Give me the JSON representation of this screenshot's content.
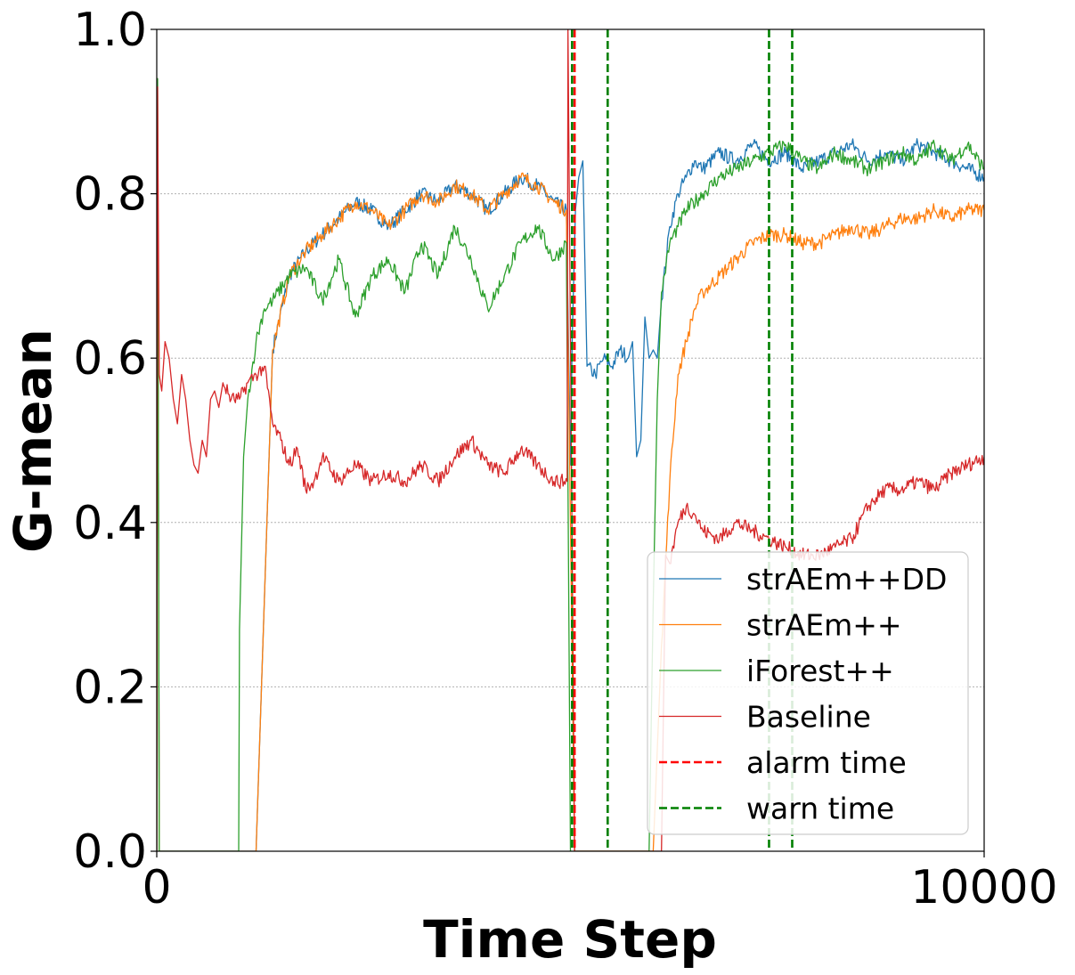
{
  "chart_data": {
    "type": "line",
    "xlabel": "Time Step",
    "ylabel": "G-mean",
    "xlim": [
      0,
      10000
    ],
    "ylim": [
      0.0,
      1.0
    ],
    "xticks": [
      0,
      10000
    ],
    "xtick_labels": [
      "0",
      "10000"
    ],
    "yticks": [
      0.0,
      0.2,
      0.4,
      0.6,
      0.8,
      1.0
    ],
    "ytick_labels": [
      "0.0",
      "0.2",
      "0.4",
      "0.6",
      "0.8",
      "1.0"
    ],
    "grid": "horizontal dotted",
    "legend_position": "lower-right",
    "series": [
      {
        "name": "strAEm++DD",
        "color": "#1f77b4",
        "x": [
          0,
          10,
          30,
          500,
          800,
          1000,
          1200,
          1400,
          1600,
          1800,
          2000,
          2200,
          2400,
          2600,
          2800,
          3000,
          3200,
          3400,
          3600,
          3800,
          4000,
          4200,
          4400,
          4600,
          4800,
          4950,
          5000,
          5020,
          5060,
          5100,
          5150,
          5200,
          5300,
          5400,
          5500,
          5600,
          5700,
          5750,
          5800,
          5850,
          5900,
          5950,
          6000,
          6050,
          6100,
          6200,
          6300,
          6400,
          6500,
          6600,
          6800,
          7000,
          7200,
          7400,
          7600,
          7800,
          8000,
          8200,
          8400,
          8600,
          8800,
          9000,
          9200,
          9400,
          9600,
          9800,
          10000
        ],
        "y": [
          0.0,
          0.94,
          0.0,
          0.0,
          0.0,
          0.0,
          0.0,
          0.61,
          0.7,
          0.73,
          0.75,
          0.77,
          0.79,
          0.78,
          0.76,
          0.78,
          0.8,
          0.79,
          0.81,
          0.8,
          0.78,
          0.8,
          0.82,
          0.81,
          0.79,
          0.78,
          0.47,
          0.62,
          0.78,
          0.82,
          0.84,
          0.59,
          0.58,
          0.6,
          0.59,
          0.61,
          0.6,
          0.62,
          0.48,
          0.5,
          0.65,
          0.6,
          0.61,
          0.6,
          0.67,
          0.76,
          0.8,
          0.82,
          0.84,
          0.83,
          0.85,
          0.84,
          0.86,
          0.84,
          0.85,
          0.83,
          0.84,
          0.85,
          0.86,
          0.84,
          0.85,
          0.84,
          0.86,
          0.85,
          0.84,
          0.83,
          0.82
        ]
      },
      {
        "name": "strAEm++",
        "color": "#ff7f0e",
        "x": [
          0,
          10,
          30,
          500,
          800,
          1000,
          1200,
          1400,
          1600,
          1800,
          2000,
          2200,
          2400,
          2600,
          2800,
          3000,
          3200,
          3400,
          3600,
          3800,
          4000,
          4200,
          4400,
          4600,
          4800,
          4950,
          5000,
          5050,
          5200,
          5500,
          5800,
          6000,
          6100,
          6200,
          6300,
          6400,
          6500,
          6600,
          6800,
          7000,
          7200,
          7400,
          7600,
          7800,
          8000,
          8200,
          8400,
          8600,
          8800,
          9000,
          9200,
          9400,
          9600,
          9800,
          10000
        ],
        "y": [
          0.0,
          0.94,
          0.0,
          0.0,
          0.0,
          0.0,
          0.0,
          0.61,
          0.7,
          0.73,
          0.75,
          0.77,
          0.79,
          0.78,
          0.76,
          0.78,
          0.8,
          0.79,
          0.81,
          0.8,
          0.78,
          0.8,
          0.82,
          0.81,
          0.79,
          0.78,
          0.4,
          0.0,
          0.0,
          0.0,
          0.0,
          0.0,
          0.25,
          0.45,
          0.58,
          0.62,
          0.66,
          0.68,
          0.7,
          0.72,
          0.74,
          0.75,
          0.75,
          0.74,
          0.74,
          0.75,
          0.76,
          0.75,
          0.76,
          0.77,
          0.77,
          0.78,
          0.77,
          0.78,
          0.78
        ]
      },
      {
        "name": "iForest++",
        "color": "#2ca02c",
        "x": [
          0,
          10,
          30,
          500,
          800,
          990,
          1000,
          1050,
          1100,
          1200,
          1300,
          1400,
          1600,
          1800,
          2000,
          2200,
          2400,
          2600,
          2800,
          3000,
          3200,
          3400,
          3600,
          3800,
          4000,
          4200,
          4400,
          4600,
          4800,
          4950,
          5000,
          5050,
          5200,
          5500,
          5800,
          5950,
          6000,
          6050,
          6100,
          6200,
          6300,
          6400,
          6600,
          6800,
          7000,
          7200,
          7400,
          7600,
          7800,
          8000,
          8200,
          8400,
          8600,
          8800,
          9000,
          9200,
          9400,
          9600,
          9800,
          10000
        ],
        "y": [
          0.0,
          0.94,
          0.0,
          0.0,
          0.0,
          0.0,
          0.27,
          0.48,
          0.55,
          0.62,
          0.66,
          0.67,
          0.7,
          0.71,
          0.67,
          0.72,
          0.65,
          0.7,
          0.72,
          0.68,
          0.74,
          0.7,
          0.76,
          0.72,
          0.66,
          0.7,
          0.74,
          0.76,
          0.72,
          0.74,
          0.0,
          0.0,
          0.0,
          0.0,
          0.0,
          0.0,
          0.3,
          0.55,
          0.68,
          0.74,
          0.76,
          0.78,
          0.8,
          0.82,
          0.83,
          0.84,
          0.85,
          0.86,
          0.84,
          0.83,
          0.85,
          0.84,
          0.83,
          0.84,
          0.85,
          0.84,
          0.86,
          0.84,
          0.86,
          0.83
        ]
      },
      {
        "name": "Baseline",
        "color": "#d62728",
        "x": [
          0,
          10,
          30,
          60,
          100,
          150,
          200,
          250,
          300,
          350,
          400,
          450,
          500,
          550,
          600,
          650,
          700,
          750,
          800,
          900,
          1000,
          1100,
          1200,
          1300,
          1400,
          1500,
          1600,
          1700,
          1800,
          1900,
          2000,
          2200,
          2400,
          2600,
          2800,
          3000,
          3200,
          3400,
          3600,
          3800,
          4000,
          4200,
          4400,
          4600,
          4800,
          4960,
          4970,
          5050,
          5100,
          5300,
          5500,
          5800,
          5950,
          6000,
          6100,
          6150,
          6200,
          6300,
          6400,
          6500,
          6600,
          6800,
          7000,
          7200,
          7400,
          7600,
          7800,
          8000,
          8200,
          8400,
          8600,
          8800,
          9000,
          9200,
          9400,
          9600,
          9800,
          10000
        ],
        "y": [
          0.0,
          0.93,
          0.58,
          0.56,
          0.62,
          0.6,
          0.55,
          0.52,
          0.58,
          0.55,
          0.5,
          0.47,
          0.46,
          0.5,
          0.48,
          0.55,
          0.56,
          0.54,
          0.57,
          0.55,
          0.55,
          0.57,
          0.58,
          0.59,
          0.52,
          0.5,
          0.47,
          0.49,
          0.44,
          0.45,
          0.48,
          0.45,
          0.47,
          0.45,
          0.46,
          0.45,
          0.47,
          0.45,
          0.48,
          0.5,
          0.47,
          0.46,
          0.49,
          0.47,
          0.45,
          0.45,
          1.0,
          0.0,
          0.0,
          0.0,
          0.0,
          0.0,
          0.0,
          0.0,
          0.0,
          0.36,
          0.35,
          0.4,
          0.42,
          0.41,
          0.39,
          0.38,
          0.4,
          0.39,
          0.38,
          0.37,
          0.36,
          0.36,
          0.37,
          0.38,
          0.42,
          0.44,
          0.44,
          0.45,
          0.44,
          0.46,
          0.47,
          0.48
        ]
      }
    ],
    "vertical_markers": [
      {
        "name": "alarm time",
        "color": "#ff0000",
        "style": "dashed",
        "x": [
          5050
        ]
      },
      {
        "name": "warn time",
        "color": "#008000",
        "style": "dashed",
        "x": [
          5020,
          5450,
          7400,
          7680
        ]
      }
    ]
  }
}
